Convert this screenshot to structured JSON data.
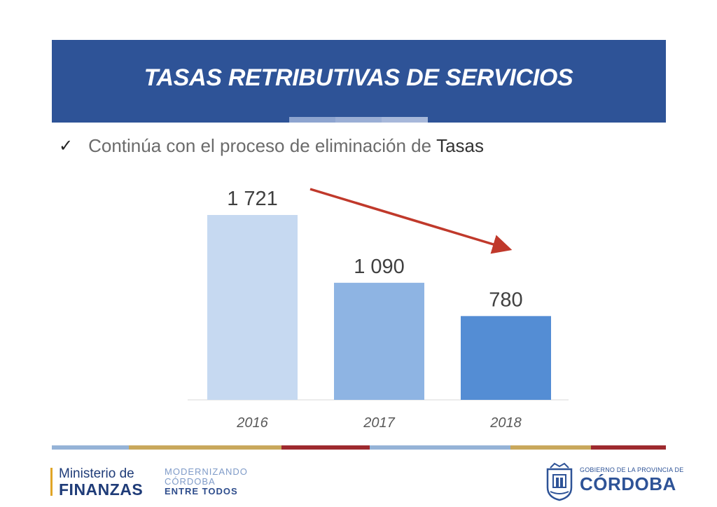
{
  "header": {
    "title": "TASAS RETRIBUTIVAS DE SERVICIOS"
  },
  "bullet": {
    "check_icon": "checkmark-icon",
    "text": "Continúa con el proceso de eliminación de",
    "strong": "Tasas"
  },
  "colors": {
    "header_bg": "#2e5397",
    "bars": [
      "#c6d9f1",
      "#8eb4e3",
      "#548dd4"
    ],
    "arrow": "#c0392b",
    "header_tabs": [
      "#8da4cf",
      "#9aaed5",
      "#a7b8da"
    ],
    "footer_stripe": [
      "#95b3d7",
      "#c9a85c",
      "#9e2a2f",
      "#95b3d7",
      "#c9a85c",
      "#9e2a2f"
    ]
  },
  "chart_data": {
    "type": "bar",
    "categories": [
      "2016",
      "2017",
      "2018"
    ],
    "values": [
      1721,
      1090,
      780
    ],
    "value_labels": [
      "1 721",
      "1 090",
      "780"
    ],
    "title": "",
    "xlabel": "",
    "ylabel": "",
    "ylim": [
      0,
      1721
    ],
    "grid": false,
    "annotations": [
      {
        "type": "arrow",
        "direction": "down-right",
        "meaning": "decreasing trend"
      }
    ]
  },
  "footer": {
    "ministerio_line1": "Ministerio de",
    "ministerio_line2": "FINANZAS",
    "slogan_line1": "MODERNIZANDO",
    "slogan_line2": "CÓRDOBA",
    "slogan_line3": "ENTRE TODOS",
    "gobierno_small": "GOBIERNO DE LA PROVINCIA DE",
    "gobierno_big": "CÓRDOBA",
    "shield_icon": "coat-of-arms-icon"
  }
}
